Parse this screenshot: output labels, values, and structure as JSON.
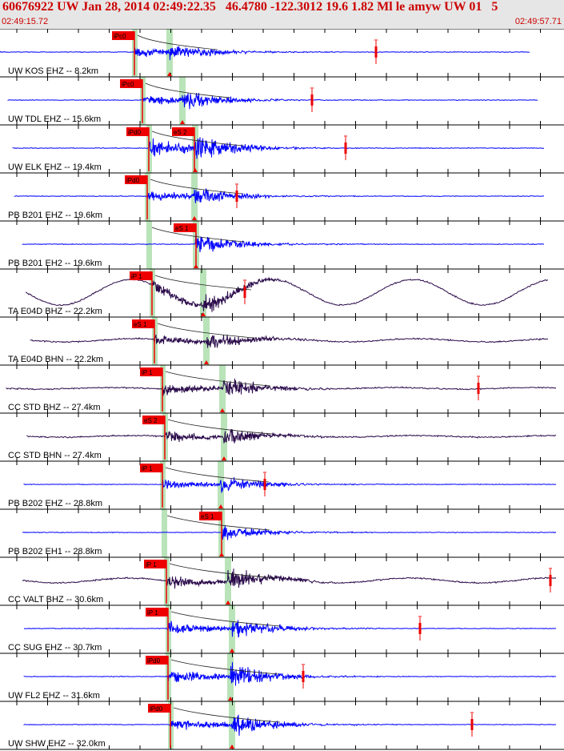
{
  "header": {
    "title": "60676922 UW Jan 28, 2014 02:49:22.35   46.4780 -122.3012 19.6 1.82 Ml le amyw UW 01   5",
    "time_start": "02:49:15.72",
    "time_end": "02:49:57.71"
  },
  "colors": {
    "header_bg": "#e6e6e6",
    "title": "#cc0000",
    "trace_blue": "#0000ff",
    "trace_dark": "#2a0a4a",
    "pick": "#ee0000",
    "green_band": "#b9e3b9"
  },
  "channels": [
    {
      "label": "UW KOS EHZ -- 8.2km",
      "pick_label": "iPc0"
    },
    {
      "label": "UW TDL EHZ -- 15.6km",
      "pick_label": "iPc0"
    },
    {
      "label": "UW ELK EHZ -- 19.4km",
      "pick_label": "iPd0",
      "pick2_label": "eS 2"
    },
    {
      "label": "PB B201 EHZ -- 19.6km",
      "pick_label": "iPd0"
    },
    {
      "label": "PB B201 EH2 -- 19.6km",
      "pick_label": "eS 1"
    },
    {
      "label": "TA E04D BHZ -- 22.2km",
      "pick_label": "iP 1"
    },
    {
      "label": "TA E04D BHN -- 22.2km",
      "pick_label": "eS 1"
    },
    {
      "label": "CC STD BHZ -- 27.4km",
      "pick_label": "iP 1"
    },
    {
      "label": "CC STD BHN -- 27.4km",
      "pick_label": "eS 2"
    },
    {
      "label": "PB B202 EHZ -- 28.8km",
      "pick_label": "iP 1"
    },
    {
      "label": "PB B202 EH1 -- 28.8km",
      "pick_label": "eS 1"
    },
    {
      "label": "CC VALT BHZ -- 30.6km",
      "pick_label": "iP 1"
    },
    {
      "label": "CC SUG EHZ -- 30.7km",
      "pick_label": "iP 1"
    },
    {
      "label": "UW FL2 EHZ -- 31.6km",
      "pick_label": "iPd0"
    },
    {
      "label": "UW SHW EHZ -- 32.0km",
      "pick_label": "iPd0"
    }
  ]
}
